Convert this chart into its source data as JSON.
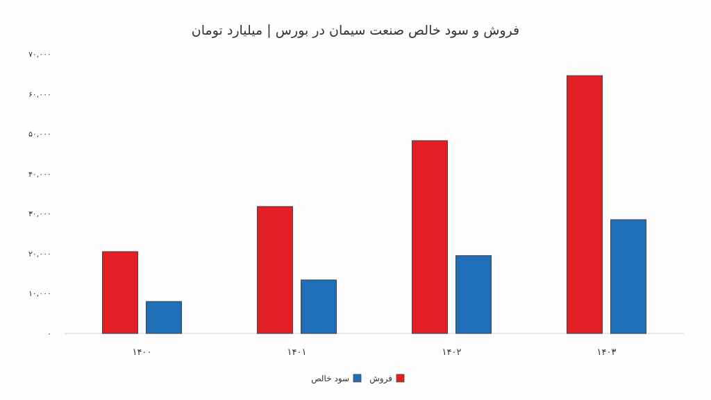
{
  "chart_data": {
    "type": "bar",
    "title": "فروش و سود خالص صنعت سیمان در بورس | میلیارد تومان",
    "categories": [
      "۱۴۰۰",
      "۱۴۰۱",
      "۱۴۰۲",
      "۱۴۰۳"
    ],
    "series": [
      {
        "name": "فروش",
        "color": "#e31e24",
        "values": [
          20500,
          31800,
          48300,
          64600
        ]
      },
      {
        "name": "سود خالص",
        "color": "#1f6fb8",
        "values": [
          8000,
          13400,
          19500,
          28500
        ]
      }
    ],
    "ylim": [
      0,
      70000
    ],
    "yticks": [
      {
        "value": 0,
        "label": "۰"
      },
      {
        "value": 10000,
        "label": "۱۰,۰۰۰"
      },
      {
        "value": 20000,
        "label": "۲۰,۰۰۰"
      },
      {
        "value": 30000,
        "label": "۳۰,۰۰۰"
      },
      {
        "value": 40000,
        "label": "۴۰,۰۰۰"
      },
      {
        "value": 50000,
        "label": "۵۰,۰۰۰"
      },
      {
        "value": 60000,
        "label": "۶۰,۰۰۰"
      },
      {
        "value": 70000,
        "label": "۷۰,۰۰۰"
      }
    ],
    "grid": false,
    "legend": "bottom"
  }
}
